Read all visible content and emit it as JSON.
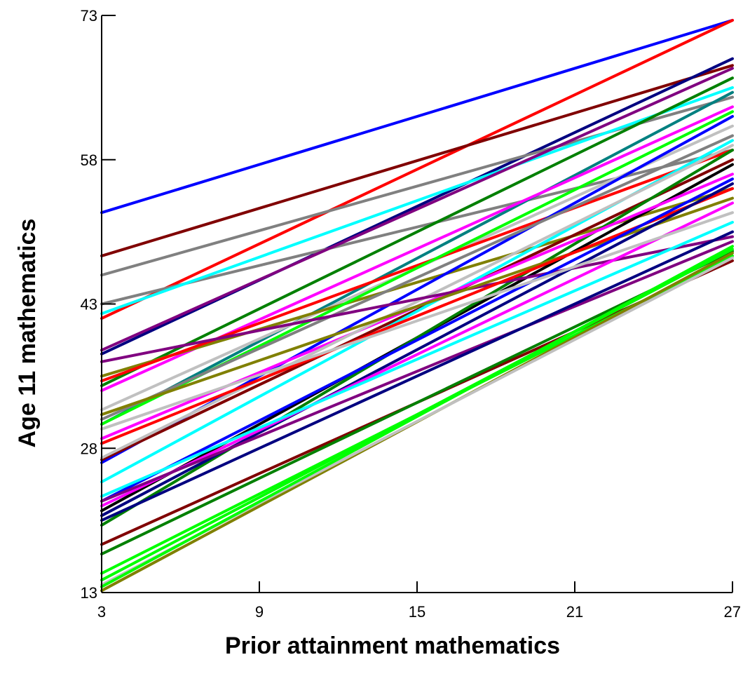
{
  "chart_data": {
    "type": "line",
    "title": "",
    "xlabel": "Prior attainment mathematics",
    "ylabel": "Age 11 mathematics",
    "xlim": [
      3,
      27
    ],
    "ylim": [
      13,
      73
    ],
    "x_ticks": [
      "3",
      "9",
      "15",
      "21",
      "27"
    ],
    "y_ticks": [
      "13",
      "28",
      "43",
      "58",
      "73"
    ],
    "grid": false,
    "legend": "none",
    "series": [
      {
        "color": "#0000ff",
        "values": [
          {
            "x": 3,
            "y": 52.5
          },
          {
            "x": 27,
            "y": 72.5
          }
        ]
      },
      {
        "color": "#ff0000",
        "values": [
          {
            "x": 3,
            "y": 41.5
          },
          {
            "x": 27,
            "y": 72.5
          }
        ]
      },
      {
        "color": "#800000",
        "values": [
          {
            "x": 3,
            "y": 48.0
          },
          {
            "x": 27,
            "y": 67.8
          }
        ]
      },
      {
        "color": "#000080",
        "values": [
          {
            "x": 3,
            "y": 37.8
          },
          {
            "x": 27,
            "y": 68.5
          }
        ]
      },
      {
        "color": "#808080",
        "values": [
          {
            "x": 3,
            "y": 46.0
          },
          {
            "x": 27,
            "y": 64.5
          }
        ]
      },
      {
        "color": "#808080",
        "values": [
          {
            "x": 3,
            "y": 43.0
          },
          {
            "x": 27,
            "y": 59.0
          }
        ]
      },
      {
        "color": "#00ffff",
        "values": [
          {
            "x": 3,
            "y": 42.0
          },
          {
            "x": 27,
            "y": 65.5
          }
        ]
      },
      {
        "color": "#008000",
        "values": [
          {
            "x": 3,
            "y": 34.5
          },
          {
            "x": 27,
            "y": 66.5
          }
        ]
      },
      {
        "color": "#800080",
        "values": [
          {
            "x": 3,
            "y": 38.2
          },
          {
            "x": 27,
            "y": 67.5
          }
        ]
      },
      {
        "color": "#008080",
        "values": [
          {
            "x": 3,
            "y": 30.5
          },
          {
            "x": 27,
            "y": 65.0
          }
        ]
      },
      {
        "color": "#ff00ff",
        "values": [
          {
            "x": 3,
            "y": 34.0
          },
          {
            "x": 27,
            "y": 63.5
          }
        ]
      },
      {
        "color": "#c0c0c0",
        "values": [
          {
            "x": 3,
            "y": 32.0
          },
          {
            "x": 27,
            "y": 61.5
          }
        ]
      },
      {
        "color": "#808000",
        "values": [
          {
            "x": 3,
            "y": 35.5
          },
          {
            "x": 27,
            "y": 55.0
          }
        ]
      },
      {
        "color": "#ff0000",
        "values": [
          {
            "x": 3,
            "y": 35.0
          },
          {
            "x": 27,
            "y": 59.0
          }
        ]
      },
      {
        "color": "#00ff00",
        "values": [
          {
            "x": 3,
            "y": 30.5
          },
          {
            "x": 27,
            "y": 63.0
          }
        ]
      },
      {
        "color": "#0000ff",
        "values": [
          {
            "x": 3,
            "y": 26.5
          },
          {
            "x": 27,
            "y": 62.5
          }
        ]
      },
      {
        "color": "#800000",
        "values": [
          {
            "x": 3,
            "y": 26.8
          },
          {
            "x": 27,
            "y": 58.0
          }
        ]
      },
      {
        "color": "#000000",
        "values": [
          {
            "x": 3,
            "y": 21.5
          },
          {
            "x": 27,
            "y": 57.5
          }
        ]
      },
      {
        "color": "#008000",
        "values": [
          {
            "x": 3,
            "y": 20.0
          },
          {
            "x": 27,
            "y": 59.0
          }
        ]
      },
      {
        "color": "#808080",
        "values": [
          {
            "x": 3,
            "y": 31.0
          },
          {
            "x": 27,
            "y": 60.5
          }
        ]
      },
      {
        "color": "#00ffff",
        "values": [
          {
            "x": 3,
            "y": 24.5
          },
          {
            "x": 27,
            "y": 60.0
          }
        ]
      },
      {
        "color": "#ff00ff",
        "values": [
          {
            "x": 3,
            "y": 29.0
          },
          {
            "x": 27,
            "y": 56.5
          }
        ]
      },
      {
        "color": "#c0c0c0",
        "values": [
          {
            "x": 3,
            "y": 27.0
          },
          {
            "x": 27,
            "y": 59.5
          }
        ]
      },
      {
        "color": "#800080",
        "values": [
          {
            "x": 3,
            "y": 37.0
          },
          {
            "x": 27,
            "y": 50.0
          }
        ]
      },
      {
        "color": "#808000",
        "values": [
          {
            "x": 3,
            "y": 31.5
          },
          {
            "x": 27,
            "y": 54.0
          }
        ]
      },
      {
        "color": "#ff0000",
        "values": [
          {
            "x": 3,
            "y": 28.5
          },
          {
            "x": 27,
            "y": 55.0
          }
        ]
      },
      {
        "color": "#0000ff",
        "values": [
          {
            "x": 3,
            "y": 22.5
          },
          {
            "x": 27,
            "y": 56.0
          }
        ]
      },
      {
        "color": "#000080",
        "values": [
          {
            "x": 3,
            "y": 21.0
          },
          {
            "x": 27,
            "y": 55.5
          }
        ]
      },
      {
        "color": "#ff00ff",
        "values": [
          {
            "x": 3,
            "y": 22.0
          },
          {
            "x": 27,
            "y": 53.5
          }
        ]
      },
      {
        "color": "#00ffff",
        "values": [
          {
            "x": 3,
            "y": 23.0
          },
          {
            "x": 27,
            "y": 51.5
          }
        ]
      },
      {
        "color": "#800080",
        "values": [
          {
            "x": 3,
            "y": 22.5
          },
          {
            "x": 27,
            "y": 49.5
          }
        ]
      },
      {
        "color": "#000080",
        "values": [
          {
            "x": 3,
            "y": 20.5
          },
          {
            "x": 27,
            "y": 50.5
          }
        ]
      },
      {
        "color": "#c0c0c0",
        "values": [
          {
            "x": 3,
            "y": 30.0
          },
          {
            "x": 27,
            "y": 52.5
          }
        ]
      },
      {
        "color": "#800000",
        "values": [
          {
            "x": 3,
            "y": 18.0
          },
          {
            "x": 27,
            "y": 47.5
          }
        ]
      },
      {
        "color": "#008000",
        "values": [
          {
            "x": 3,
            "y": 17.0
          },
          {
            "x": 27,
            "y": 48.5
          }
        ]
      },
      {
        "color": "#00ff00",
        "values": [
          {
            "x": 3,
            "y": 15.0
          },
          {
            "x": 27,
            "y": 48.0
          }
        ]
      },
      {
        "color": "#00ff00",
        "values": [
          {
            "x": 3,
            "y": 14.3
          },
          {
            "x": 27,
            "y": 48.7
          }
        ]
      },
      {
        "color": "#808000",
        "values": [
          {
            "x": 3,
            "y": 13.2
          },
          {
            "x": 27,
            "y": 48.3
          }
        ]
      },
      {
        "color": "#c0c0c0",
        "values": [
          {
            "x": 3,
            "y": 13.8
          },
          {
            "x": 27,
            "y": 47.8
          }
        ]
      },
      {
        "color": "#00ff00",
        "values": [
          {
            "x": 3,
            "y": 13.6
          },
          {
            "x": 27,
            "y": 49.0
          }
        ]
      }
    ]
  }
}
